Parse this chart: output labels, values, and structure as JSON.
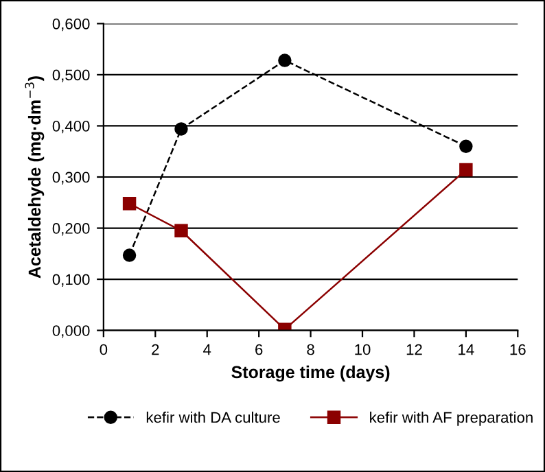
{
  "chart_data": {
    "type": "line",
    "xlabel": "Storage time (days)",
    "ylabel": "Acetaldehyde (mg·dm$^{−3}$)",
    "x": [
      1,
      3,
      7,
      14
    ],
    "series": [
      {
        "name": "kefir with DA culture",
        "color": "#000000",
        "values": [
          0.147,
          0.394,
          0.528,
          0.36
        ],
        "marker": "circle",
        "line_style": "dashed"
      },
      {
        "name": "kefir with AF preparation",
        "color": "#8b0000",
        "values": [
          0.248,
          0.195,
          0.002,
          0.314
        ],
        "marker": "square",
        "line_style": "solid"
      }
    ],
    "xlim": [
      0,
      16
    ],
    "xticks": [
      0,
      2,
      4,
      6,
      8,
      10,
      12,
      14,
      16
    ],
    "ylim": [
      0,
      0.6
    ],
    "yticks": [
      {
        "value": 0,
        "label": "0,000"
      },
      {
        "value": 0.1,
        "label": "0,100"
      },
      {
        "value": 0.2,
        "label": "0,200"
      },
      {
        "value": 0.3,
        "label": "0,300"
      },
      {
        "value": 0.4,
        "label": "0,400"
      },
      {
        "value": 0.5,
        "label": "0,500"
      },
      {
        "value": 0.6,
        "label": "0,600"
      }
    ],
    "grid": "y",
    "legend": "bottom"
  }
}
